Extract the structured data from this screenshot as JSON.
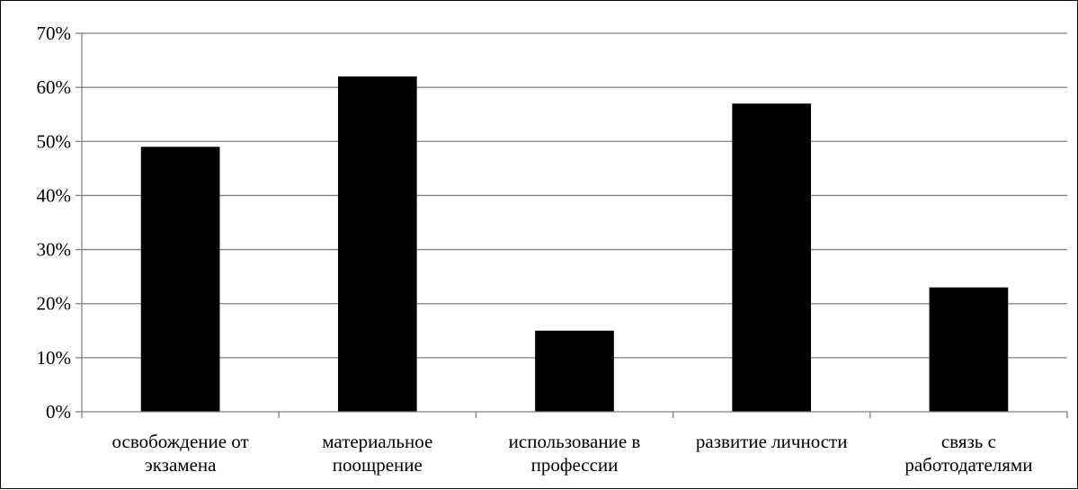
{
  "chart_data": {
    "type": "bar",
    "categories": [
      [
        "освобождение от",
        "экзамена"
      ],
      [
        "материальное",
        "поощрение"
      ],
      [
        "использование в",
        "профессии"
      ],
      [
        "развитие личности"
      ],
      [
        "связь с",
        "работодателями"
      ]
    ],
    "values": [
      49,
      62,
      15,
      57,
      23
    ],
    "y_ticks": [
      "0%",
      "10%",
      "20%",
      "30%",
      "40%",
      "50%",
      "60%",
      "70%"
    ],
    "ylim": [
      0,
      70
    ],
    "grid": true,
    "bar_color": "#000000",
    "grid_color": "#808080",
    "axis_color": "#808080"
  }
}
